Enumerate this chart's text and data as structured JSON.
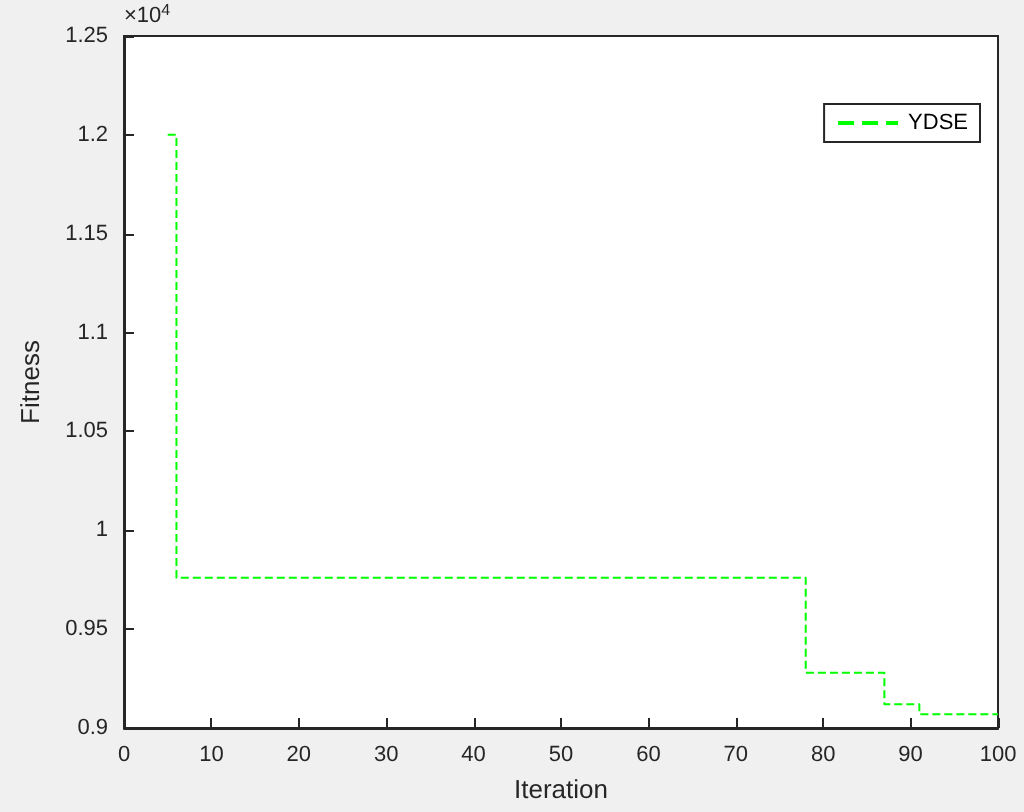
{
  "chart_data": {
    "type": "step",
    "xlabel": "Iteration",
    "ylabel": "Fitness",
    "annotations": [
      "×10$^{4}$"
    ],
    "x": [
      5,
      6,
      78,
      87,
      91,
      100
    ],
    "series": [
      {
        "name": "YDSE",
        "color": "#00ff00",
        "values": [
          1.2,
          0.976,
          0.928,
          0.912,
          0.907,
          0.907
        ]
      }
    ],
    "xlim": [
      0,
      100
    ],
    "xticks": [
      0,
      10,
      20,
      30,
      40,
      50,
      60,
      70,
      80,
      90,
      100
    ],
    "ylim": [
      0.9,
      1.25
    ],
    "yticks": [
      0.9,
      0.95,
      1,
      1.05,
      1.1,
      1.15,
      1.2,
      1.25
    ],
    "grid": false,
    "legend": "top right",
    "line_style": "dashed",
    "marker": "none"
  }
}
